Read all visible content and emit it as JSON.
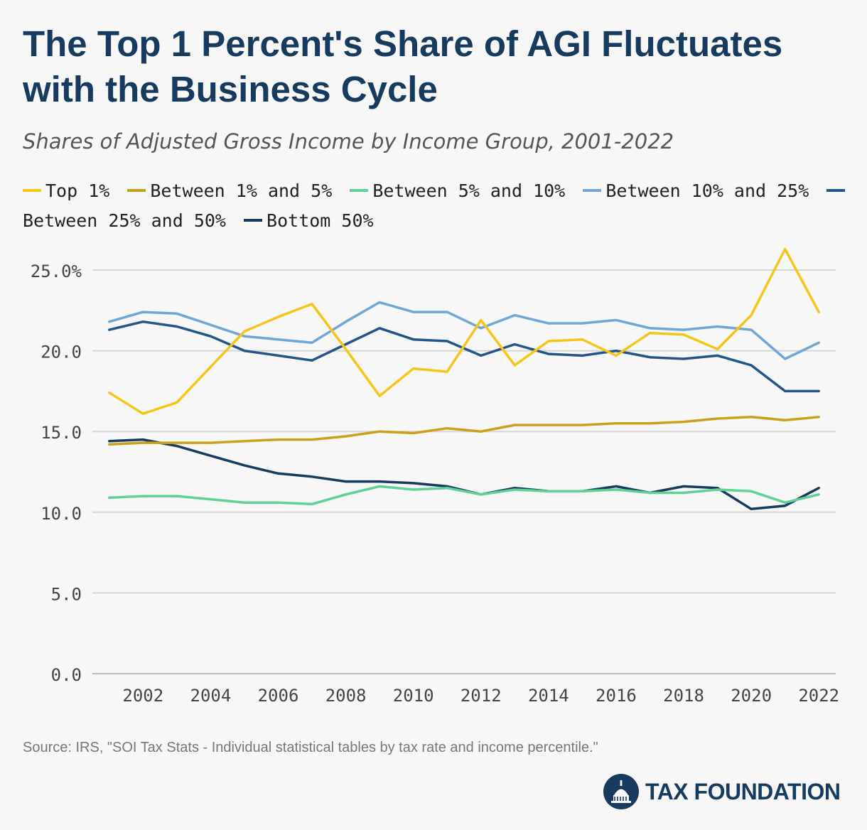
{
  "header": {
    "title": "The Top 1 Percent's Share of AGI Fluctuates with the Business Cycle",
    "subtitle": "Shares of Adjusted Gross Income by Income Group, 2001-2022"
  },
  "footer": {
    "source": "Source: IRS, \"SOI Tax Stats - Individual statistical tables by tax rate and income percentile.\"",
    "brand": "TAX FOUNDATION"
  },
  "chart_data": {
    "type": "line",
    "title": "The Top 1 Percent's Share of AGI Fluctuates with the Business Cycle",
    "subtitle": "Shares of Adjusted Gross Income by Income Group, 2001-2022",
    "x": [
      2001,
      2002,
      2003,
      2004,
      2005,
      2006,
      2007,
      2008,
      2009,
      2010,
      2011,
      2012,
      2013,
      2014,
      2015,
      2016,
      2017,
      2018,
      2019,
      2020,
      2021,
      2022
    ],
    "x_ticks": [
      "2002",
      "2004",
      "2006",
      "2008",
      "2010",
      "2012",
      "2014",
      "2016",
      "2018",
      "2020",
      "2022"
    ],
    "y_ticks": [
      "0.0",
      "5.0",
      "10.0",
      "15.0",
      "20.0",
      "25.0%"
    ],
    "ylim": [
      0,
      25
    ],
    "grid": "horizontal",
    "legend": "top",
    "series": [
      {
        "name": "Top 1%",
        "color": "#f5c518",
        "values": [
          17.4,
          16.1,
          16.8,
          19.0,
          21.2,
          22.1,
          22.9,
          20.1,
          17.2,
          18.9,
          18.7,
          21.9,
          19.1,
          20.6,
          20.7,
          19.7,
          21.1,
          21.0,
          20.1,
          22.2,
          26.3,
          22.4
        ]
      },
      {
        "name": "Between 1% and 5%",
        "color": "#c9a118",
        "values": [
          14.2,
          14.3,
          14.3,
          14.3,
          14.4,
          14.5,
          14.5,
          14.7,
          15.0,
          14.9,
          15.2,
          15.0,
          15.4,
          15.4,
          15.4,
          15.5,
          15.5,
          15.6,
          15.8,
          15.9,
          15.7,
          15.9
        ]
      },
      {
        "name": "Between 5% and 10%",
        "color": "#5ed295",
        "values": [
          10.9,
          11.0,
          11.0,
          10.8,
          10.6,
          10.6,
          10.5,
          11.1,
          11.6,
          11.4,
          11.5,
          11.1,
          11.4,
          11.3,
          11.3,
          11.4,
          11.2,
          11.2,
          11.4,
          11.3,
          10.6,
          11.1
        ]
      },
      {
        "name": "Between 10% and 25%",
        "color": "#6ea6d8",
        "values": [
          21.8,
          22.4,
          22.3,
          21.6,
          20.9,
          20.7,
          20.5,
          21.8,
          23.0,
          22.4,
          22.4,
          21.4,
          22.2,
          21.7,
          21.7,
          21.9,
          21.4,
          21.3,
          21.5,
          21.3,
          19.5,
          20.5
        ]
      },
      {
        "name": "Between 25% and 50%",
        "color": "#23548a",
        "values": [
          21.3,
          21.8,
          21.5,
          20.9,
          20.0,
          19.7,
          19.4,
          20.4,
          21.4,
          20.7,
          20.6,
          19.7,
          20.4,
          19.8,
          19.7,
          20.0,
          19.6,
          19.5,
          19.7,
          19.1,
          17.5,
          17.5
        ]
      },
      {
        "name": "Bottom 50%",
        "color": "#173b5f",
        "values": [
          14.4,
          14.5,
          14.1,
          13.5,
          12.9,
          12.4,
          12.2,
          11.9,
          11.9,
          11.8,
          11.6,
          11.1,
          11.5,
          11.3,
          11.3,
          11.6,
          11.2,
          11.6,
          11.5,
          10.2,
          10.4,
          11.5
        ]
      }
    ]
  }
}
